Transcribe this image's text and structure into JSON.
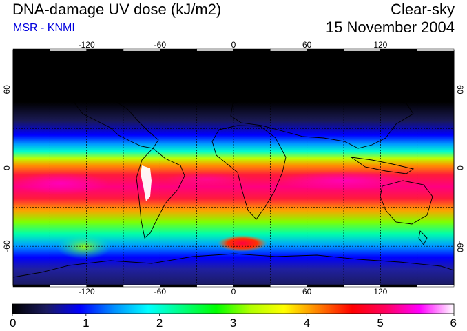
{
  "header": {
    "title": "DNA-damage UV dose (kJ/m2)",
    "subtitle": "MSR - KNMI",
    "subtitle_color": "#0000dd",
    "condition": "Clear-sky",
    "date": "15 November 2004"
  },
  "map": {
    "projection": "equirectangular",
    "lon_range": [
      -180,
      180
    ],
    "lat_range": [
      -90,
      90
    ],
    "lon_ticks": [
      -120,
      -60,
      0,
      60,
      120
    ],
    "lon_tick_labels": [
      "-120",
      "-60",
      "0",
      "60",
      "120"
    ],
    "lat_ticks": [
      60,
      0,
      -60
    ],
    "lat_tick_labels": [
      "60",
      "0",
      "-60"
    ],
    "gridlines": "dashed",
    "coastlines": true
  },
  "colorbar": {
    "min": 0,
    "max": 6,
    "labels": [
      "0",
      "1",
      "2",
      "3",
      "4",
      "5",
      "6"
    ],
    "colors": [
      "#000000",
      "#1a1a60",
      "#0000ff",
      "#0090ff",
      "#00ffff",
      "#00ff80",
      "#00ff00",
      "#b0ff00",
      "#ffff00",
      "#ff8000",
      "#ff0000",
      "#ff0060",
      "#ff00ff",
      "#ffffff"
    ]
  }
}
